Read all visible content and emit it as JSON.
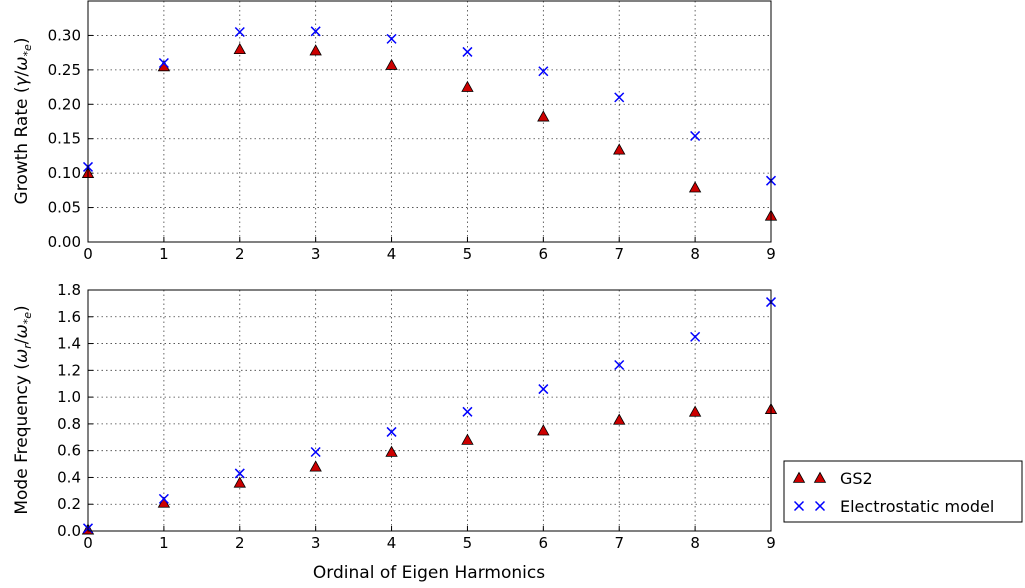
{
  "chart_data": [
    {
      "type": "scatter",
      "title": "",
      "ylabel": "Growth Rate (γ/ω*e)",
      "xlabel": "",
      "xlim": [
        0,
        9
      ],
      "ylim": [
        0,
        0.35
      ],
      "xticks": [
        "0",
        "1",
        "2",
        "3",
        "4",
        "5",
        "6",
        "7",
        "8",
        "9"
      ],
      "yticks": [
        "0.00",
        "0.05",
        "0.10",
        "0.15",
        "0.20",
        "0.25",
        "0.30"
      ],
      "grid": true,
      "x": [
        0,
        1,
        2,
        3,
        4,
        5,
        6,
        7,
        8,
        9
      ],
      "series": [
        {
          "name": "GS2",
          "marker": "triangle",
          "color": "#cc0000",
          "values": [
            0.1,
            0.255,
            0.28,
            0.278,
            0.257,
            0.225,
            0.182,
            0.134,
            0.079,
            0.038
          ]
        },
        {
          "name": "Electrostatic model",
          "marker": "x",
          "color": "#0000ff",
          "values": [
            0.109,
            0.26,
            0.305,
            0.306,
            0.295,
            0.276,
            0.248,
            0.21,
            0.154,
            0.089
          ]
        }
      ]
    },
    {
      "type": "scatter",
      "title": "",
      "ylabel": "Mode Frequency (ωr/ω*e)",
      "xlabel": "Ordinal of Eigen Harmonics",
      "xlim": [
        0,
        9
      ],
      "ylim": [
        0,
        1.8
      ],
      "xticks": [
        "0",
        "1",
        "2",
        "3",
        "4",
        "5",
        "6",
        "7",
        "8",
        "9"
      ],
      "yticks": [
        "0.0",
        "0.2",
        "0.4",
        "0.6",
        "0.8",
        "1.0",
        "1.2",
        "1.4",
        "1.6",
        "1.8"
      ],
      "grid": true,
      "x": [
        0,
        1,
        2,
        3,
        4,
        5,
        6,
        7,
        8,
        9
      ],
      "series": [
        {
          "name": "GS2",
          "marker": "triangle",
          "color": "#cc0000",
          "values": [
            0.01,
            0.21,
            0.36,
            0.48,
            0.59,
            0.68,
            0.75,
            0.83,
            0.89,
            0.91
          ]
        },
        {
          "name": "Electrostatic model",
          "marker": "x",
          "color": "#0000ff",
          "values": [
            0.02,
            0.24,
            0.43,
            0.59,
            0.74,
            0.89,
            1.06,
            1.24,
            1.45,
            1.71
          ]
        }
      ]
    }
  ],
  "legend": {
    "placement": "outside-right",
    "entries": [
      "GS2",
      "Electrostatic model"
    ]
  }
}
